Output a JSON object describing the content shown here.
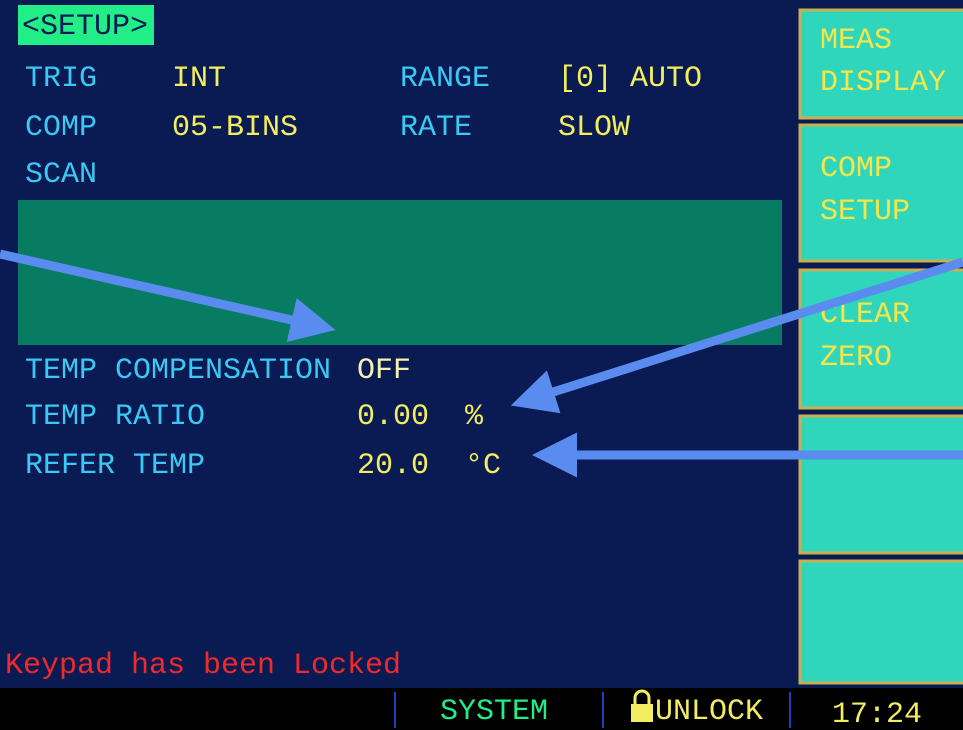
{
  "header": {
    "title": "<SETUP>"
  },
  "settings": [
    {
      "label": "TRIG",
      "value": "INT"
    },
    {
      "label": "RANGE",
      "value": "[0] AUTO"
    },
    {
      "label": "COMP",
      "value": "05-BINS"
    },
    {
      "label": "RATE",
      "value": "SLOW"
    },
    {
      "label": "SCAN"
    }
  ],
  "temp": [
    {
      "label": "TEMP COMPENSATION",
      "value": "OFF"
    },
    {
      "label": "TEMP RATIO",
      "value": "0.00",
      "unit": "%"
    },
    {
      "label": "REFER TEMP",
      "value": "20.0",
      "unit": "°C"
    }
  ],
  "message": "Keypad has been Locked",
  "softkeys": [
    {
      "line1": "MEAS",
      "line2": "DISPLAY"
    },
    {
      "line1": "COMP",
      "line2": "SETUP"
    },
    {
      "line1": "CLEAR",
      "line2": "ZERO"
    }
  ],
  "status": {
    "mode": "SYSTEM",
    "lock": "UNLOCK",
    "time": "17:24"
  }
}
